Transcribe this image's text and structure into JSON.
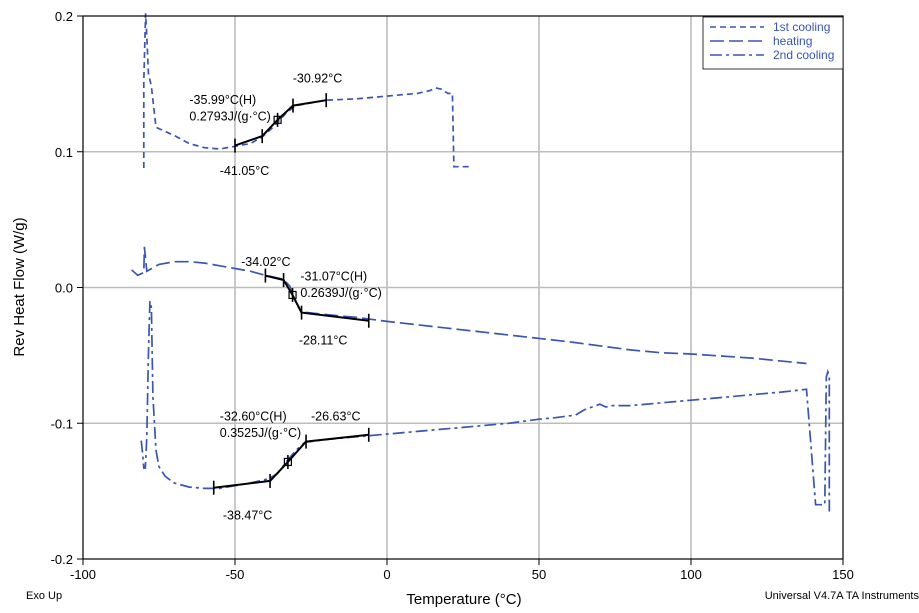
{
  "chart_data": {
    "type": "line",
    "xlabel": "Temperature (°C)",
    "ylabel": "Rev Heat Flow (W/g)",
    "xlim": [
      -100,
      150
    ],
    "ylim": [
      -0.2,
      0.2
    ],
    "xticks": [
      -100,
      -50,
      0,
      50,
      100,
      150
    ],
    "yticks": [
      -0.2,
      -0.1,
      0.0,
      0.1,
      0.2
    ],
    "xtick_labels": [
      "-100",
      "-50",
      "0",
      "50",
      "100",
      "150"
    ],
    "ytick_labels": [
      "-0.2",
      "-0.1",
      "0.0",
      "0.1",
      "0.2"
    ],
    "grid": true,
    "legend_position": "top-right",
    "series_color": "#3a55b4",
    "series": [
      {
        "name": "1st cooling",
        "dash": "short",
        "points": [
          [
            -80,
            0.088
          ],
          [
            -80,
            0.152
          ],
          [
            -79.4,
            0.202
          ],
          [
            -79,
            0.185
          ],
          [
            -78.5,
            0.158
          ],
          [
            -77.5,
            0.148
          ],
          [
            -76,
            0.118
          ],
          [
            -73,
            0.115
          ],
          [
            -70,
            0.112
          ],
          [
            -65,
            0.106
          ],
          [
            -60,
            0.103
          ],
          [
            -55,
            0.102
          ],
          [
            -50,
            0.104
          ],
          [
            -45,
            0.106
          ],
          [
            -41,
            0.111
          ],
          [
            -38,
            0.117
          ],
          [
            -35,
            0.124
          ],
          [
            -33,
            0.129
          ],
          [
            -30,
            0.134
          ],
          [
            -25,
            0.136
          ],
          [
            -20,
            0.138
          ],
          [
            -10,
            0.139
          ],
          [
            0,
            0.141
          ],
          [
            5,
            0.142
          ],
          [
            10,
            0.143
          ],
          [
            14,
            0.145
          ],
          [
            16,
            0.147
          ],
          [
            18,
            0.146
          ],
          [
            20,
            0.143
          ],
          [
            21.5,
            0.143
          ],
          [
            22,
            0.089
          ],
          [
            26,
            0.089
          ],
          [
            28,
            0.089
          ]
        ]
      },
      {
        "name": "heating",
        "dash": "long",
        "points": [
          [
            -84,
            0.013
          ],
          [
            -82,
            0.009
          ],
          [
            -80,
            0.011
          ],
          [
            -79.8,
            0.03
          ],
          [
            -79,
            0.012
          ],
          [
            -75,
            0.017
          ],
          [
            -70,
            0.019
          ],
          [
            -65,
            0.019
          ],
          [
            -60,
            0.018
          ],
          [
            -55,
            0.016
          ],
          [
            -50,
            0.014
          ],
          [
            -45,
            0.012
          ],
          [
            -40,
            0.009
          ],
          [
            -36,
            0.007
          ],
          [
            -34,
            0.006
          ],
          [
            -32,
            0.001
          ],
          [
            -31,
            -0.005
          ],
          [
            -30,
            -0.01
          ],
          [
            -29,
            -0.015
          ],
          [
            -28,
            -0.018
          ],
          [
            -20,
            -0.02
          ],
          [
            -10,
            -0.022
          ],
          [
            0,
            -0.025
          ],
          [
            20,
            -0.03
          ],
          [
            40,
            -0.035
          ],
          [
            60,
            -0.04
          ],
          [
            80,
            -0.046
          ],
          [
            90,
            -0.048
          ],
          [
            100,
            -0.049
          ],
          [
            120,
            -0.052
          ],
          [
            138,
            -0.056
          ]
        ]
      },
      {
        "name": "2nd cooling",
        "dash": "dashdot",
        "points": [
          [
            145.5,
            -0.165
          ],
          [
            145.5,
            -0.065
          ],
          [
            145,
            -0.062
          ],
          [
            144.5,
            -0.066
          ],
          [
            144,
            -0.16
          ],
          [
            141,
            -0.16
          ],
          [
            138,
            -0.075
          ],
          [
            130,
            -0.077
          ],
          [
            120,
            -0.079
          ],
          [
            110,
            -0.081
          ],
          [
            100,
            -0.083
          ],
          [
            90,
            -0.085
          ],
          [
            80,
            -0.087
          ],
          [
            74,
            -0.087
          ],
          [
            72,
            -0.088
          ],
          [
            70,
            -0.086
          ],
          [
            65,
            -0.09
          ],
          [
            62,
            -0.094
          ],
          [
            55,
            -0.096
          ],
          [
            50,
            -0.097
          ],
          [
            40,
            -0.1
          ],
          [
            30,
            -0.102
          ],
          [
            20,
            -0.104
          ],
          [
            10,
            -0.106
          ],
          [
            0,
            -0.108
          ],
          [
            -10,
            -0.11
          ],
          [
            -20,
            -0.112
          ],
          [
            -27,
            -0.114
          ],
          [
            -30,
            -0.12
          ],
          [
            -33,
            -0.128
          ],
          [
            -36,
            -0.137
          ],
          [
            -39,
            -0.141
          ],
          [
            -45,
            -0.144
          ],
          [
            -50,
            -0.146
          ],
          [
            -55,
            -0.148
          ],
          [
            -60,
            -0.148
          ],
          [
            -65,
            -0.147
          ],
          [
            -70,
            -0.144
          ],
          [
            -73,
            -0.139
          ],
          [
            -75,
            -0.132
          ],
          [
            -76,
            -0.12
          ],
          [
            -77,
            -0.08
          ],
          [
            -77.5,
            -0.015
          ],
          [
            -78,
            -0.01
          ],
          [
            -78.5,
            -0.05
          ],
          [
            -79,
            -0.11
          ],
          [
            -79.5,
            -0.133
          ],
          [
            -80,
            -0.133
          ],
          [
            -80.5,
            -0.12
          ],
          [
            -81,
            -0.11
          ]
        ]
      }
    ],
    "fits": [
      {
        "name": "1st cooling fit",
        "line": [
          [
            -50,
            0.1045
          ],
          [
            -41.05,
            0.1115
          ],
          [
            -35.99,
            0.1235
          ],
          [
            -30.92,
            0.134
          ],
          [
            -20,
            0.138
          ]
        ],
        "ticks": [
          [
            -50,
            0.1045
          ],
          [
            -41.05,
            0.1115
          ],
          [
            -35.99,
            0.1235
          ],
          [
            -30.92,
            0.134
          ],
          [
            -20,
            0.138
          ]
        ],
        "inflection": [
          -35.99,
          0.1235
        ]
      },
      {
        "name": "heating fit",
        "line": [
          [
            -40,
            0.0088
          ],
          [
            -34.02,
            0.0055
          ],
          [
            -31.07,
            -0.0055
          ],
          [
            -28.11,
            -0.0185
          ],
          [
            -6,
            -0.0245
          ]
        ],
        "ticks": [
          [
            -40,
            0.0088
          ],
          [
            -34.02,
            0.0055
          ],
          [
            -31.07,
            -0.0055
          ],
          [
            -28.11,
            -0.0185
          ],
          [
            -6,
            -0.0245
          ]
        ],
        "inflection": [
          -31.07,
          -0.0055
        ]
      },
      {
        "name": "2nd cooling fit",
        "line": [
          [
            -57,
            -0.1475
          ],
          [
            -38.47,
            -0.1425
          ],
          [
            -32.6,
            -0.1285
          ],
          [
            -26.63,
            -0.1135
          ],
          [
            -6,
            -0.1085
          ]
        ],
        "ticks": [
          [
            -57,
            -0.1475
          ],
          [
            -38.47,
            -0.1425
          ],
          [
            -32.6,
            -0.1285
          ],
          [
            -26.63,
            -0.1135
          ],
          [
            -6,
            -0.1085
          ]
        ],
        "inflection": [
          -32.6,
          -0.1285
        ]
      }
    ],
    "annotations": [
      {
        "text": "-30.92°C",
        "x": -31,
        "y": 0.151
      },
      {
        "text": "-35.99°C(H)",
        "x": -65,
        "y": 0.135
      },
      {
        "text": "0.2793J/(g·°C)",
        "x": -65,
        "y": 0.123
      },
      {
        "text": "-41.05°C",
        "x": -55,
        "y": 0.083
      },
      {
        "text": "-34.02°C",
        "x": -48,
        "y": 0.016
      },
      {
        "text": "-31.07°C(H)",
        "x": -28.5,
        "y": 0.005
      },
      {
        "text": "0.2639J/(g·°C)",
        "x": -28.5,
        "y": -0.007
      },
      {
        "text": "-28.11°C",
        "x": -29,
        "y": -0.042
      },
      {
        "text": "-32.60°C(H)",
        "x": -55,
        "y": -0.098
      },
      {
        "text": "0.3525J/(g·°C)",
        "x": -55,
        "y": -0.11
      },
      {
        "text": "-26.63°C",
        "x": -25,
        "y": -0.098
      },
      {
        "text": "-38.47°C",
        "x": -54,
        "y": -0.171
      }
    ]
  },
  "footer": {
    "left": "Exo Up",
    "right": "Universal V4.7A TA Instruments"
  }
}
